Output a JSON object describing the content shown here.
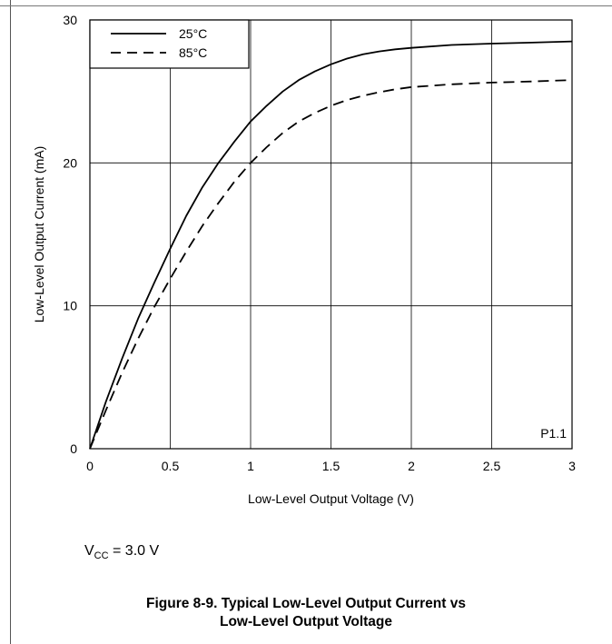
{
  "chart_data": {
    "type": "line",
    "xlabel": "Low-Level Output Voltage (V)",
    "ylabel": "Low-Level Output Current (mA)",
    "xlim": [
      0,
      3
    ],
    "ylim": [
      0,
      30
    ],
    "xticks": [
      "0",
      "0.5",
      "1",
      "1.5",
      "2",
      "2.5",
      "3"
    ],
    "yticks": [
      "0",
      "10",
      "20",
      "30"
    ],
    "grid": true,
    "legend_position": "top-left",
    "annotation": "P1.1",
    "series": [
      {
        "name": "25°C",
        "style": "solid",
        "x": [
          0,
          0.1,
          0.2,
          0.3,
          0.4,
          0.5,
          0.6,
          0.7,
          0.8,
          0.9,
          1.0,
          1.1,
          1.2,
          1.3,
          1.4,
          1.5,
          1.6,
          1.7,
          1.8,
          1.9,
          2.0,
          2.25,
          2.5,
          2.75,
          3.0
        ],
        "y": [
          0,
          3.3,
          6.3,
          9.1,
          11.6,
          14.0,
          16.3,
          18.3,
          20.0,
          21.5,
          22.9,
          24.0,
          25.0,
          25.8,
          26.4,
          26.9,
          27.3,
          27.6,
          27.8,
          27.95,
          28.05,
          28.25,
          28.35,
          28.42,
          28.5
        ]
      },
      {
        "name": "85°C",
        "style": "dashed",
        "x": [
          0,
          0.1,
          0.2,
          0.3,
          0.4,
          0.5,
          0.6,
          0.7,
          0.8,
          0.9,
          1.0,
          1.1,
          1.2,
          1.3,
          1.4,
          1.5,
          1.6,
          1.7,
          1.8,
          1.9,
          2.0,
          2.25,
          2.5,
          2.75,
          3.0
        ],
        "y": [
          0,
          2.7,
          5.3,
          7.7,
          9.9,
          11.9,
          13.8,
          15.6,
          17.2,
          18.7,
          20.0,
          21.1,
          22.1,
          22.9,
          23.5,
          24.0,
          24.4,
          24.7,
          24.95,
          25.15,
          25.3,
          25.5,
          25.62,
          25.7,
          25.8
        ]
      }
    ]
  },
  "note": {
    "prefix": "V",
    "subscript": "CC",
    "suffix": " = 3.0 V"
  },
  "caption": {
    "line1": "Figure 8-9. Typical Low-Level Output Current vs",
    "line2": "Low-Level Output Voltage"
  }
}
